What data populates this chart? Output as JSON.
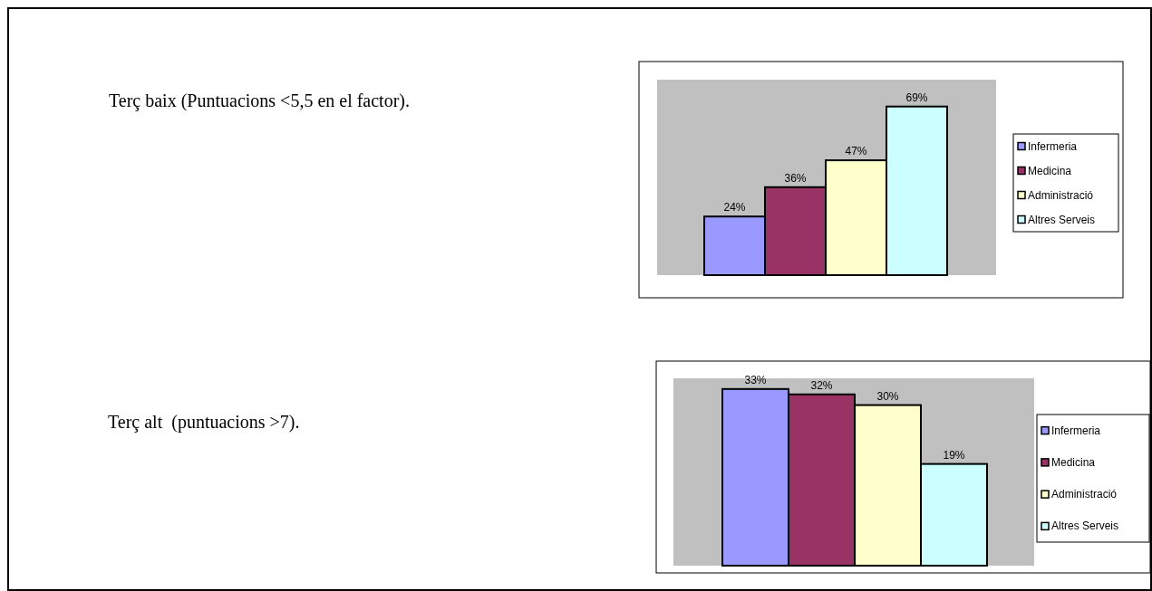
{
  "chart_data": [
    {
      "type": "bar",
      "annotations": [
        "Terç baix (Puntuacions <5,5 en el factor)."
      ],
      "categories": [
        null
      ],
      "ylim": [
        0,
        80
      ],
      "legend": "right",
      "series": [
        {
          "name": "Infermeria",
          "color": "#9999ff",
          "values": [
            24
          ],
          "value_labels": [
            "24%"
          ]
        },
        {
          "name": "Medicina",
          "color": "#993366",
          "values": [
            36
          ],
          "value_labels": [
            "36%"
          ]
        },
        {
          "name": "Administració",
          "color": "#ffffcc",
          "values": [
            47
          ],
          "value_labels": [
            "47%"
          ]
        },
        {
          "name": "Altres Serveis",
          "color": "#ccffff",
          "values": [
            69
          ],
          "value_labels": [
            "69%"
          ]
        }
      ]
    },
    {
      "type": "bar",
      "annotations": [
        "Terç alt  (puntuacions >7)."
      ],
      "categories": [
        null
      ],
      "ylim": [
        0,
        35
      ],
      "legend": "right",
      "series": [
        {
          "name": "Infermeria",
          "color": "#9999ff",
          "values": [
            33
          ],
          "value_labels": [
            "33%"
          ]
        },
        {
          "name": "Medicina",
          "color": "#993366",
          "values": [
            32
          ],
          "value_labels": [
            "32%"
          ]
        },
        {
          "name": "Administració",
          "color": "#ffffcc",
          "values": [
            30
          ],
          "value_labels": [
            "30%"
          ]
        },
        {
          "name": "Altres Serveis",
          "color": "#ccffff",
          "values": [
            19
          ],
          "value_labels": [
            "19%"
          ]
        }
      ]
    }
  ]
}
